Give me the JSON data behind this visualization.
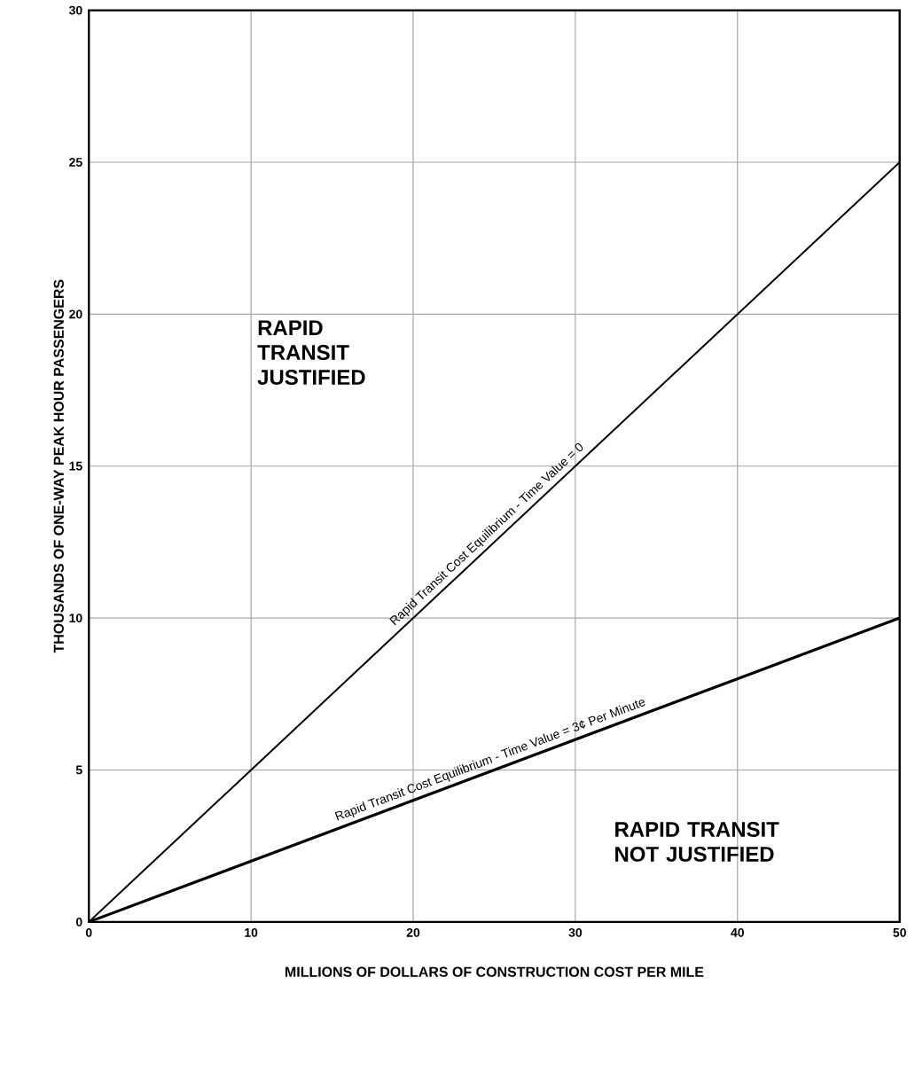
{
  "chart_data": {
    "type": "line",
    "xlabel": "MILLIONS OF DOLLARS OF CONSTRUCTION COST PER MILE",
    "ylabel": "THOUSANDS OF ONE-WAY PEAK HOUR PASSENGERS",
    "x": [
      0,
      50
    ],
    "series": [
      {
        "name": "Rapid Transit Cost Equilibrium - Time Value = 0",
        "color": "#000000",
        "values": [
          0,
          25
        ]
      },
      {
        "name": "Rapid Transit Cost Equilibrium - Time Value = 3¢ Per Minute",
        "color": "#000000",
        "values": [
          0,
          10
        ]
      }
    ],
    "annotations": [
      "RAPID TRANSIT JUSTIFIED",
      "RAPID TRANSIT NOT JUSTIFIED"
    ],
    "xlim": [
      0,
      50
    ],
    "ylim": [
      0,
      30
    ],
    "xticks": [
      0,
      10,
      20,
      30,
      40,
      50
    ],
    "yticks": [
      0,
      5,
      10,
      15,
      20,
      25,
      30
    ],
    "grid": true,
    "marker": "none",
    "line_style": "solid"
  }
}
